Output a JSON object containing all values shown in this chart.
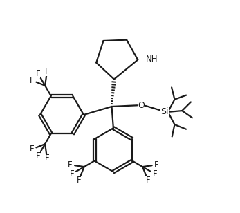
{
  "bg_color": "#ffffff",
  "line_color": "#1a1a1a",
  "line_width": 1.6,
  "font_size": 8.5,
  "fig_width": 3.47,
  "fig_height": 3.08,
  "dpi": 100,
  "xlim": [
    0,
    10
  ],
  "ylim": [
    0,
    8.9
  ]
}
